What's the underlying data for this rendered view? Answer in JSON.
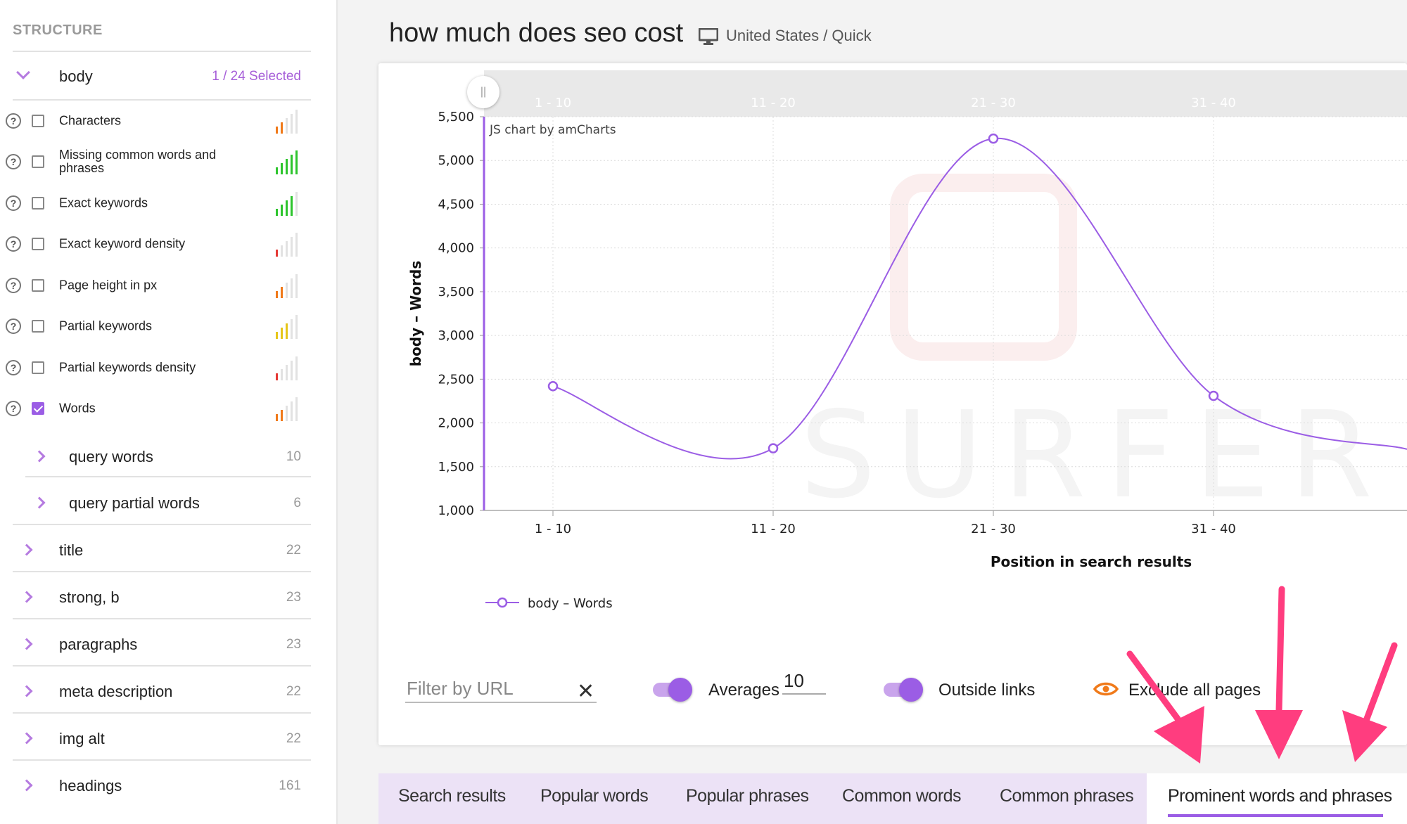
{
  "sidebar": {
    "heading": "STRUCTURE",
    "body_section": {
      "label": "body",
      "selected": "1 / 24 Selected"
    },
    "metrics": [
      {
        "label": "Characters",
        "checked": false,
        "bars": 2,
        "color": "#f07a1a"
      },
      {
        "label": "Missing common words and phrases",
        "checked": false,
        "bars": 5,
        "color": "#2ec52e"
      },
      {
        "label": "Exact keywords",
        "checked": false,
        "bars": 4,
        "color": "#2ec52e"
      },
      {
        "label": "Exact keyword density",
        "checked": false,
        "bars": 1,
        "color": "#e53935"
      },
      {
        "label": "Page height in px",
        "checked": false,
        "bars": 2,
        "color": "#f07a1a"
      },
      {
        "label": "Partial keywords",
        "checked": false,
        "bars": 3,
        "color": "#e6c619"
      },
      {
        "label": "Partial keywords density",
        "checked": false,
        "bars": 1,
        "color": "#e53935"
      },
      {
        "label": "Words",
        "checked": true,
        "bars": 2,
        "color": "#f07a1a"
      }
    ],
    "sub_groups": [
      {
        "label": "query words",
        "count": "10"
      },
      {
        "label": "query partial words",
        "count": "6"
      }
    ],
    "groups": [
      {
        "label": "title",
        "count": "22"
      },
      {
        "label": "strong, b",
        "count": "23"
      },
      {
        "label": "paragraphs",
        "count": "23"
      },
      {
        "label": "meta description",
        "count": "22"
      },
      {
        "label": "img alt",
        "count": "22"
      },
      {
        "label": "headings",
        "count": "161"
      }
    ]
  },
  "header": {
    "title": "how much does seo cost",
    "device_icon": "monitor-icon",
    "location": "United States / Quick"
  },
  "chart_data": {
    "type": "line",
    "credit": "JS chart by amCharts",
    "watermark": "SURFER",
    "categories": [
      "1 - 10",
      "11 - 20",
      "21 - 30",
      "31 - 40"
    ],
    "series": [
      {
        "name": "body – Words",
        "values": [
          2420,
          1710,
          5250,
          2310
        ],
        "color": "#9b5de5"
      }
    ],
    "continues_right_value": 1700,
    "ylabel": "body – Words",
    "xlabel": "Position in search results",
    "ylim": [
      1000,
      5500
    ],
    "yticks": [
      1000,
      1500,
      2000,
      2500,
      3000,
      3500,
      4000,
      4500,
      5000,
      5500
    ],
    "ytick_labels": [
      "1,000",
      "1,500",
      "2,000",
      "2,500",
      "3,000",
      "3,500",
      "4,000",
      "4,500",
      "5,000",
      "5,500"
    ],
    "scrollbar_labels": [
      "1 - 10",
      "11 - 20",
      "21 - 30",
      "31 - 40"
    ],
    "grid": true,
    "legend": "bottom-left",
    "scroll_handle": "||"
  },
  "controls": {
    "filter_placeholder": "Filter by URL",
    "clear_icon": "close-icon",
    "averages_label": "Averages",
    "averages_value": "10",
    "outside_links_label": "Outside links",
    "exclude_label": "Exclude all pages"
  },
  "tabs": [
    {
      "label": "Search results",
      "active": false
    },
    {
      "label": "Popular words",
      "active": false
    },
    {
      "label": "Popular phrases",
      "active": false
    },
    {
      "label": "Common words",
      "active": false
    },
    {
      "label": "Common phrases",
      "active": false
    },
    {
      "label": "Prominent words and phrases",
      "active": true
    }
  ],
  "colors": {
    "accent": "#9b5de5",
    "arrow": "#ff3d7f",
    "eye": "#f07a1a"
  }
}
